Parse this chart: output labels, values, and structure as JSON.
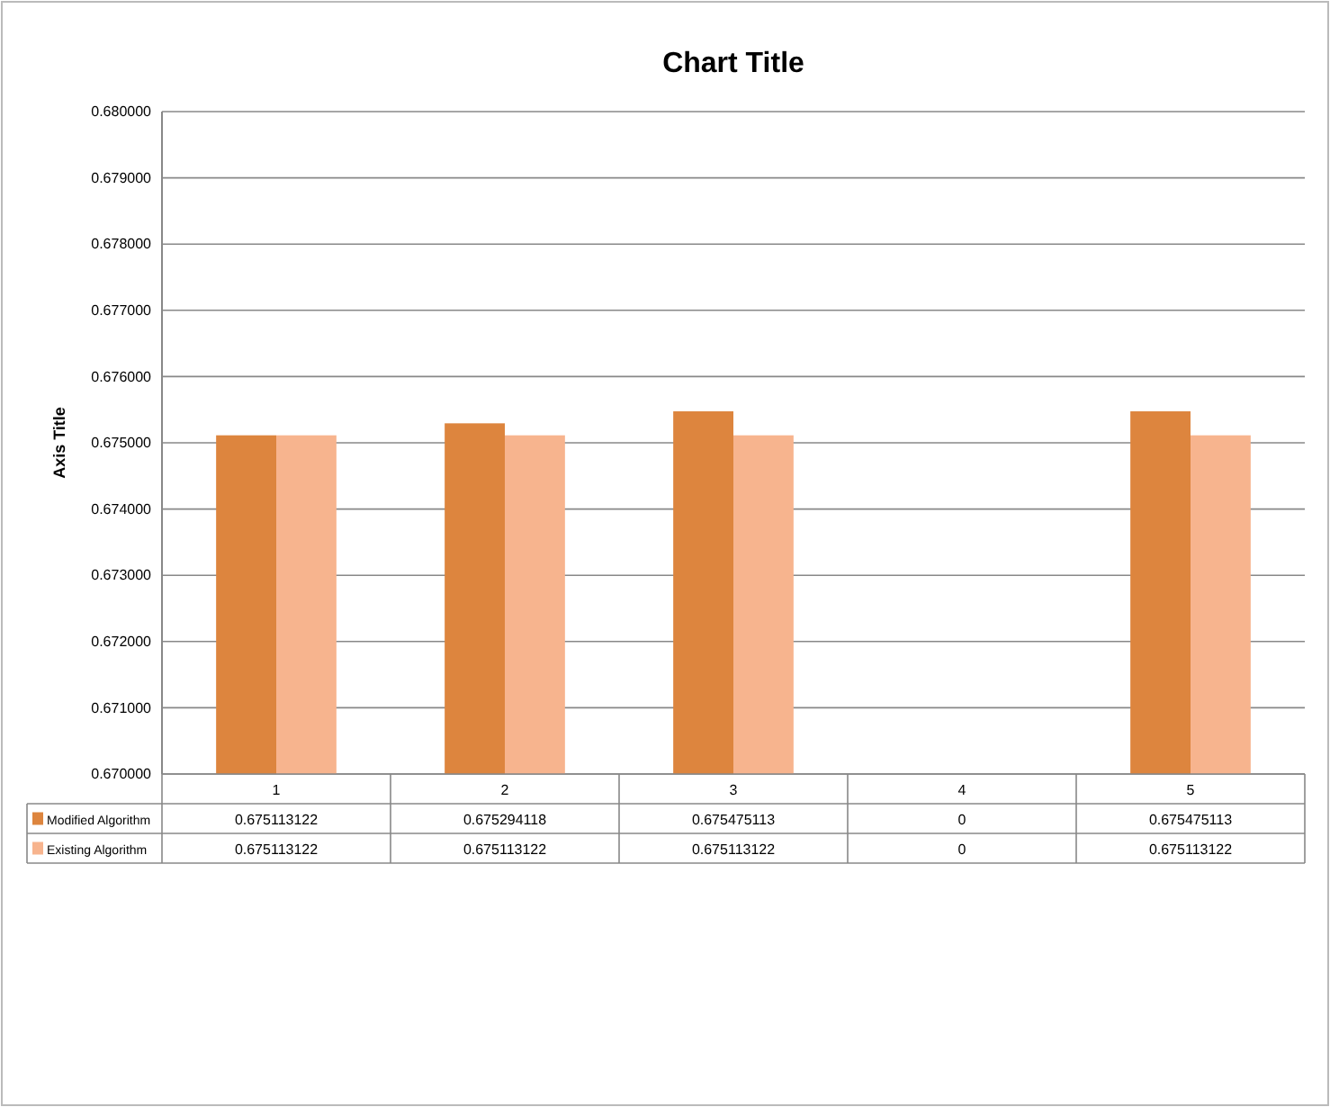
{
  "chart_data": {
    "type": "bar",
    "title": "Chart Title",
    "ylabel": "Axis Title",
    "categories": [
      "1",
      "2",
      "3",
      "4",
      "5"
    ],
    "series": [
      {
        "name": "Modified Algorithm",
        "color": "#dd853e",
        "values": [
          0.675113122,
          0.675294118,
          0.675475113,
          null,
          0.675475113
        ],
        "value_labels": [
          "0.675113122",
          "0.675294118",
          "0.675475113",
          "0",
          "0.675475113"
        ]
      },
      {
        "name": "Existing Algorithm",
        "color": "#f7b48e",
        "values": [
          0.675113122,
          0.675113122,
          0.675113122,
          null,
          0.675113122
        ],
        "value_labels": [
          "0.675113122",
          "0.675113122",
          "0.675113122",
          "0",
          "0.675113122"
        ]
      }
    ],
    "ylim": [
      0.67,
      0.68
    ],
    "yticks": [
      {
        "value": 0.67,
        "label": "0.670000"
      },
      {
        "value": 0.671,
        "label": "0.671000"
      },
      {
        "value": 0.672,
        "label": "0.672000"
      },
      {
        "value": 0.673,
        "label": "0.673000"
      },
      {
        "value": 0.674,
        "label": "0.674000"
      },
      {
        "value": 0.675,
        "label": "0.675000"
      },
      {
        "value": 0.676,
        "label": "0.676000"
      },
      {
        "value": 0.677,
        "label": "0.677000"
      },
      {
        "value": 0.678,
        "label": "0.678000"
      },
      {
        "value": 0.679,
        "label": "0.679000"
      },
      {
        "value": 0.68,
        "label": "0.680000"
      }
    ],
    "grid": "y",
    "legend": "bottom"
  }
}
